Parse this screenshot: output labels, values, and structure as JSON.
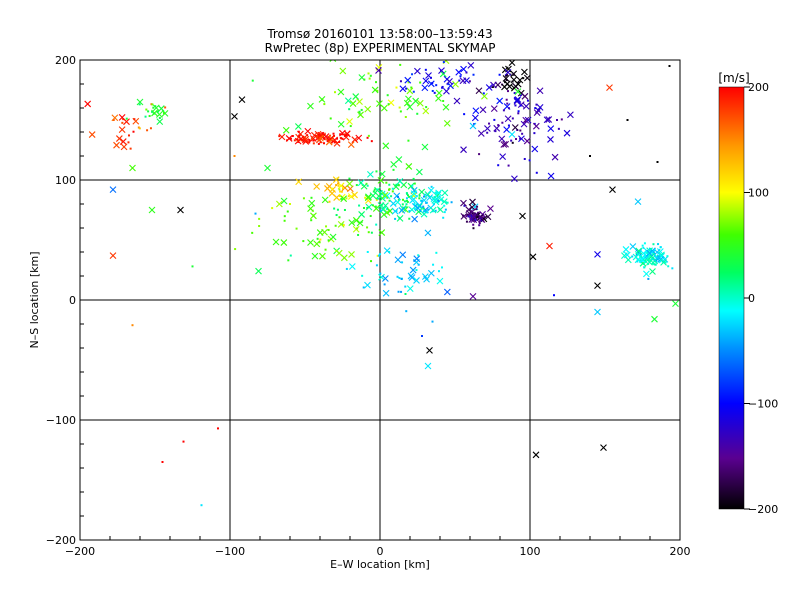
{
  "chart_data": {
    "type": "scatter",
    "title": "Tromsø 20160101 13:58:00–13:59:43",
    "subtitle": "RwPretec (8p) EXPERIMENTAL SKYMAP",
    "xlabel": "E–W location [km]",
    "ylabel": "N–S location [km]",
    "xlim": [
      -200,
      200
    ],
    "ylim": [
      -200,
      200
    ],
    "x_ticks": [
      "−200",
      "−100",
      "0",
      "100",
      "200"
    ],
    "y_ticks": [
      "−200",
      "−100",
      "0",
      "100",
      "200"
    ],
    "grid": true,
    "colorbar": {
      "label": "[m/s]",
      "range": [
        -200,
        200
      ],
      "ticks": [
        "200",
        "100",
        "0",
        "−100",
        "−200"
      ],
      "colormap": "rainbow (black → purple → blue → cyan → green → yellow → red)"
    },
    "markers": [
      "x",
      "dot"
    ],
    "clusters": [
      {
        "x": -40,
        "y": 135,
        "spread_x": 20,
        "spread_y": 4,
        "v": 195,
        "n": 90
      },
      {
        "x": -25,
        "y": 93,
        "spread_x": 14,
        "spread_y": 8,
        "v": 115,
        "n": 30
      },
      {
        "x": 5,
        "y": 85,
        "spread_x": 25,
        "spread_y": 20,
        "v": 30,
        "n": 90
      },
      {
        "x": 28,
        "y": 80,
        "spread_x": 18,
        "spread_y": 10,
        "v": -20,
        "n": 80
      },
      {
        "x": 62,
        "y": 70,
        "spread_x": 8,
        "spread_y": 7,
        "v": -160,
        "n": 60
      },
      {
        "x": 88,
        "y": 185,
        "spread_x": 10,
        "spread_y": 10,
        "v": -200,
        "n": 30
      },
      {
        "x": 90,
        "y": 150,
        "spread_x": 30,
        "spread_y": 28,
        "v": -130,
        "n": 90
      },
      {
        "x": 180,
        "y": 35,
        "spread_x": 12,
        "spread_y": 9,
        "v": -10,
        "n": 80
      },
      {
        "x": -170,
        "y": 140,
        "spread_x": 18,
        "spread_y": 18,
        "v": 180,
        "n": 25
      },
      {
        "x": -150,
        "y": 155,
        "spread_x": 12,
        "spread_y": 8,
        "v": 40,
        "n": 20
      },
      {
        "x": -35,
        "y": 60,
        "spread_x": 35,
        "spread_y": 28,
        "v": 60,
        "n": 70
      },
      {
        "x": 15,
        "y": 25,
        "spread_x": 25,
        "spread_y": 22,
        "v": -30,
        "n": 50
      },
      {
        "x": 0,
        "y": 165,
        "spread_x": 45,
        "spread_y": 25,
        "v": 60,
        "n": 70
      },
      {
        "x": 40,
        "y": 185,
        "spread_x": 35,
        "spread_y": 12,
        "v": -110,
        "n": 40
      }
    ],
    "scattered_points": [
      {
        "x": -133,
        "y": 75,
        "v": -200,
        "m": "x"
      },
      {
        "x": -152,
        "y": 75,
        "v": 50,
        "m": "x"
      },
      {
        "x": -178,
        "y": 92,
        "v": -60,
        "m": "x"
      },
      {
        "x": -178,
        "y": 37,
        "v": 180,
        "m": "x"
      },
      {
        "x": -165,
        "y": -21,
        "v": 150,
        "m": "dot"
      },
      {
        "x": -145,
        "y": -135,
        "v": 200,
        "m": "dot"
      },
      {
        "x": -131,
        "y": -118,
        "v": 200,
        "m": "dot"
      },
      {
        "x": -108,
        "y": -107,
        "v": 200,
        "m": "dot"
      },
      {
        "x": -119,
        "y": -171,
        "v": -20,
        "m": "dot"
      },
      {
        "x": -125,
        "y": 28,
        "v": 40,
        "m": "dot"
      },
      {
        "x": -92,
        "y": 167,
        "v": -200,
        "m": "x"
      },
      {
        "x": -97,
        "y": 153,
        "v": -200,
        "m": "x"
      },
      {
        "x": 33,
        "y": -42,
        "v": -200,
        "m": "x"
      },
      {
        "x": 32,
        "y": -55,
        "v": -20,
        "m": "x"
      },
      {
        "x": 104,
        "y": -129,
        "v": -200,
        "m": "x"
      },
      {
        "x": 149,
        "y": -123,
        "v": -200,
        "m": "x"
      },
      {
        "x": 145,
        "y": -10,
        "v": -30,
        "m": "x"
      },
      {
        "x": 145,
        "y": 12,
        "v": -200,
        "m": "x"
      },
      {
        "x": 62,
        "y": 3,
        "v": -150,
        "m": "x"
      },
      {
        "x": 102,
        "y": 36,
        "v": -200,
        "m": "x"
      },
      {
        "x": 113,
        "y": 45,
        "v": 190,
        "m": "x"
      },
      {
        "x": 95,
        "y": 70,
        "v": -200,
        "m": "x"
      },
      {
        "x": 145,
        "y": 38,
        "v": -110,
        "m": "x"
      },
      {
        "x": 155,
        "y": 92,
        "v": -200,
        "m": "x"
      },
      {
        "x": 172,
        "y": 82,
        "v": -30,
        "m": "x"
      },
      {
        "x": 183,
        "y": -16,
        "v": 40,
        "m": "x"
      },
      {
        "x": 197,
        "y": -3,
        "v": 40,
        "m": "x"
      },
      {
        "x": 153,
        "y": 177,
        "v": 180,
        "m": "x"
      },
      {
        "x": 17,
        "y": 5,
        "v": 20,
        "m": "dot"
      },
      {
        "x": 35,
        "y": -18,
        "v": -40,
        "m": "dot"
      },
      {
        "x": 28,
        "y": -30,
        "v": -80,
        "m": "dot"
      },
      {
        "x": 116,
        "y": 4,
        "v": -100,
        "m": "dot"
      },
      {
        "x": 62,
        "y": 145,
        "v": -30,
        "m": "x"
      },
      {
        "x": 88,
        "y": 138,
        "v": -20,
        "m": "x"
      },
      {
        "x": -165,
        "y": 110,
        "v": 60,
        "m": "x"
      },
      {
        "x": -160,
        "y": 165,
        "v": 40,
        "m": "x"
      },
      {
        "x": 165,
        "y": 150,
        "v": -200,
        "m": "dot"
      },
      {
        "x": 185,
        "y": 115,
        "v": -200,
        "m": "dot"
      },
      {
        "x": 193,
        "y": 195,
        "v": -200,
        "m": "dot"
      },
      {
        "x": 140,
        "y": 120,
        "v": -200,
        "m": "dot"
      },
      {
        "x": 118,
        "y": 150,
        "v": -140,
        "m": "dot"
      },
      {
        "x": -75,
        "y": 110,
        "v": 40,
        "m": "x"
      },
      {
        "x": -60,
        "y": 80,
        "v": 90,
        "m": "dot"
      },
      {
        "x": -83,
        "y": 72,
        "v": -40,
        "m": "dot"
      },
      {
        "x": -97,
        "y": 120,
        "v": 150,
        "m": "dot"
      }
    ]
  }
}
